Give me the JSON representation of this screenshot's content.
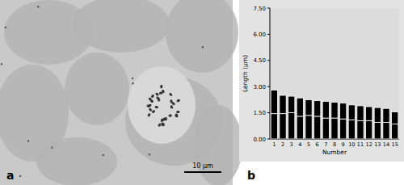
{
  "figure": {
    "panel_labels": [
      "a",
      "b"
    ],
    "scale_bar": "10 µm"
  },
  "chart_data": {
    "type": "bar",
    "stacked": true,
    "grid": false,
    "x_label": "Number",
    "y_label": "Length (μm)",
    "categories": [
      "1",
      "2",
      "3",
      "4",
      "5",
      "6",
      "7",
      "8",
      "9",
      "10",
      "11",
      "12",
      "13",
      "14",
      "15"
    ],
    "series": [
      {
        "color": "#000000",
        "values": [
          1.45,
          1.45,
          1.5,
          1.3,
          1.35,
          1.3,
          1.2,
          1.2,
          1.15,
          1.1,
          1.05,
          1.05,
          0.95,
          0.95,
          0.85
        ]
      },
      {
        "color": "#000000",
        "values": [
          1.35,
          1.05,
          0.95,
          1.05,
          0.9,
          0.9,
          0.95,
          0.9,
          0.9,
          0.85,
          0.85,
          0.8,
          0.85,
          0.8,
          0.7
        ]
      }
    ],
    "ylim": [
      0,
      7.5
    ],
    "yticks": [
      {
        "value": 0,
        "label": "0.00"
      },
      {
        "value": 1.5,
        "label": "1.50"
      },
      {
        "value": 3,
        "label": "3.00"
      },
      {
        "value": 4.5,
        "label": "4.50"
      },
      {
        "value": 6,
        "label": "6.00"
      },
      {
        "value": 7.5,
        "label": "7.50"
      }
    ]
  }
}
